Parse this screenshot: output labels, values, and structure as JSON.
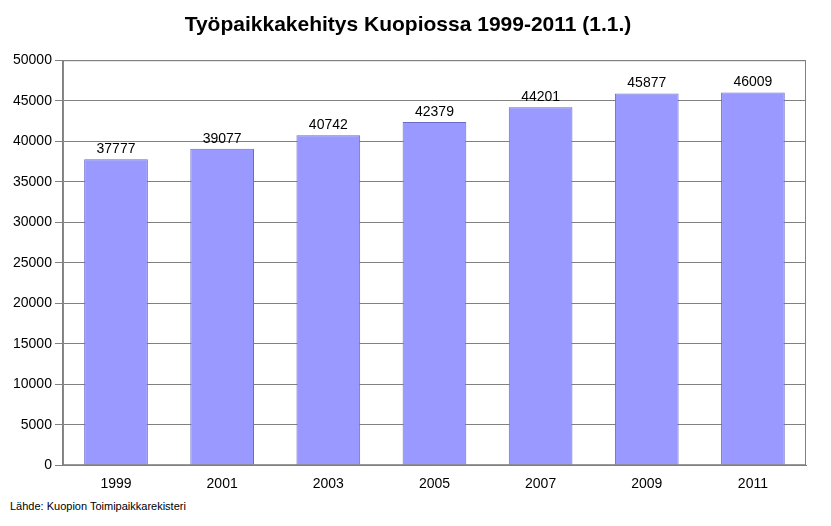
{
  "chart_data": {
    "type": "bar",
    "title": "Työpaikkakehitys Kuopiossa 1999-2011 (1.1.)",
    "categories": [
      "1999",
      "2001",
      "2003",
      "2005",
      "2007",
      "2009",
      "2011"
    ],
    "values": [
      37777,
      39077,
      40742,
      42379,
      44201,
      45877,
      46009
    ],
    "color": "#9999ff",
    "ylim": [
      0,
      50000
    ],
    "yticks": [
      0,
      5000,
      10000,
      15000,
      20000,
      25000,
      30000,
      35000,
      40000,
      45000,
      50000
    ],
    "grid": true,
    "data_labels": true,
    "annotation": "Lähde: Kuopion Toimipaikkarekisteri"
  }
}
